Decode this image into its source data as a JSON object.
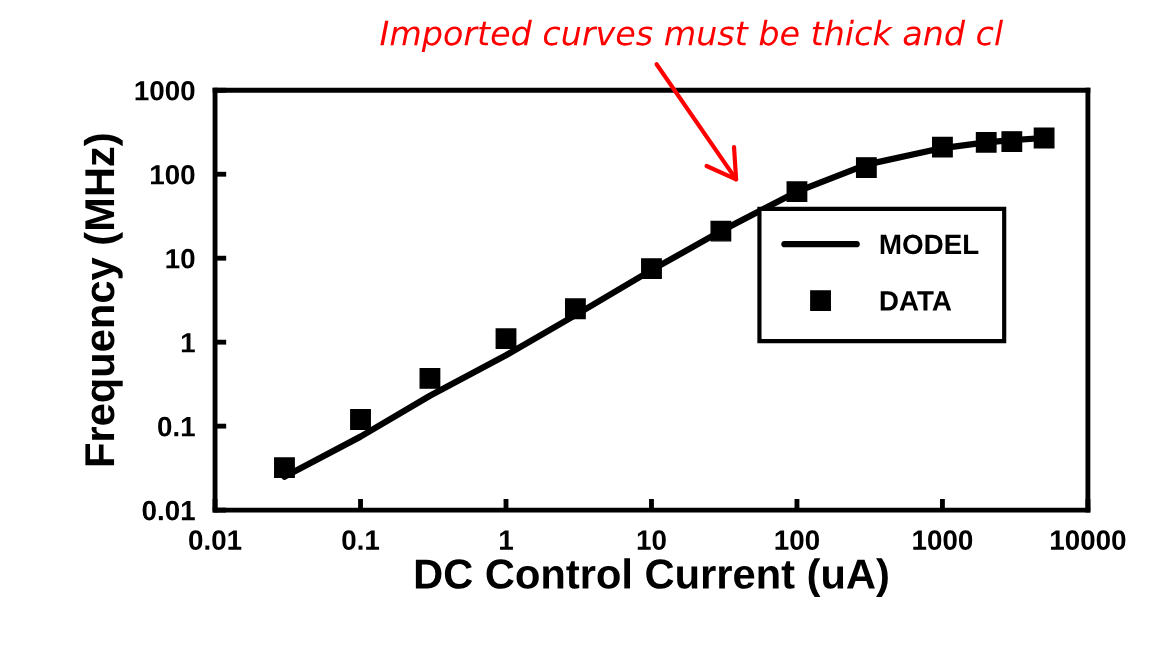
{
  "chart_data": {
    "type": "line",
    "xlabel": "DC Control Current (uA)",
    "ylabel": "Frequency (MHz)",
    "log": "xy",
    "xlim": [
      0.01,
      10000
    ],
    "ylim": [
      0.01,
      1000
    ],
    "xticks": [
      0.01,
      0.1,
      1,
      10,
      100,
      1000,
      10000
    ],
    "yticks": [
      0.01,
      0.1,
      1,
      10,
      100,
      1000
    ],
    "grid": false,
    "legend": "right",
    "series": [
      {
        "name": "MODEL",
        "color": "#000000",
        "marker": "none",
        "line_style": "solid",
        "x": [
          0.03,
          0.1,
          0.3,
          1,
          3,
          10,
          30,
          100,
          300,
          1000,
          2000,
          3000,
          5000
        ],
        "values": [
          0.025,
          0.075,
          0.23,
          0.7,
          2.1,
          7.2,
          21,
          62,
          130,
          205,
          240,
          255,
          270
        ]
      },
      {
        "name": "DATA",
        "type": "scatter",
        "color": "#000000",
        "marker": "square",
        "x": [
          0.03,
          0.1,
          0.3,
          1,
          3,
          10,
          30,
          100,
          300,
          1000,
          2000,
          3000,
          5000
        ],
        "values": [
          0.032,
          0.12,
          0.37,
          1.1,
          2.5,
          7.5,
          21,
          62,
          120,
          210,
          240,
          245,
          270
        ]
      }
    ],
    "annotations": [
      "Imported curves must be thick and cl"
    ]
  }
}
